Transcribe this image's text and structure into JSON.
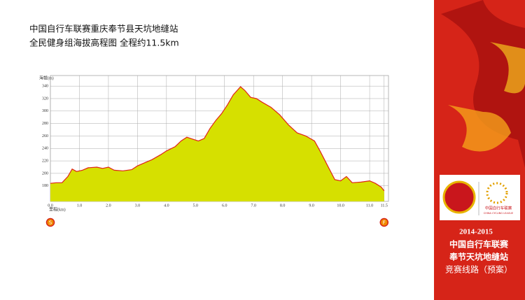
{
  "chart_data": {
    "type": "area",
    "title": "中国自行车联赛重庆奉节县天坑地缝站",
    "subtitle": "全民健身组海拔高程图  全程约11.5km",
    "y_label": "海拔(m)",
    "x_label": "里程(km)",
    "start_marker": "S",
    "finish_marker": "F",
    "x": [
      0,
      0.2,
      0.4,
      0.6,
      0.75,
      0.9,
      1.1,
      1.3,
      1.6,
      1.8,
      2.0,
      2.2,
      2.5,
      2.8,
      3.0,
      3.2,
      3.5,
      3.8,
      4.0,
      4.3,
      4.5,
      4.7,
      4.9,
      5.1,
      5.3,
      5.5,
      5.7,
      5.9,
      6.1,
      6.3,
      6.55,
      6.7,
      6.9,
      7.1,
      7.3,
      7.6,
      7.9,
      8.2,
      8.5,
      8.8,
      9.1,
      9.3,
      9.6,
      9.8,
      10.0,
      10.2,
      10.4,
      10.7,
      11.0,
      11.2,
      11.4,
      11.5
    ],
    "values": [
      184,
      185,
      185,
      195,
      207,
      203,
      205,
      209,
      210,
      208,
      210,
      205,
      204,
      206,
      212,
      216,
      222,
      230,
      236,
      243,
      252,
      258,
      255,
      252,
      256,
      272,
      285,
      296,
      310,
      326,
      339,
      333,
      322,
      320,
      314,
      306,
      294,
      278,
      265,
      260,
      252,
      235,
      208,
      190,
      188,
      195,
      185,
      186,
      188,
      184,
      178,
      172
    ],
    "fill_color": "#d6e000",
    "line_color": "#e02418",
    "xlim": [
      0,
      11.65
    ],
    "ylim": [
      155,
      357
    ],
    "xticks": [
      {
        "value": 0,
        "label": "0.0"
      },
      {
        "value": 1,
        "label": "1.0"
      },
      {
        "value": 2,
        "label": "2.0"
      },
      {
        "value": 3,
        "label": "3.0"
      },
      {
        "value": 4,
        "label": "4.0"
      },
      {
        "value": 5,
        "label": "5.0"
      },
      {
        "value": 6,
        "label": "6.0"
      },
      {
        "value": 7,
        "label": "7.0"
      },
      {
        "value": 8,
        "label": "8.0"
      },
      {
        "value": 9,
        "label": "9.0"
      },
      {
        "value": 10,
        "label": "10.0"
      },
      {
        "value": 11,
        "label": "11.0"
      },
      11.5
    ],
    "yticks": [
      180,
      200,
      220,
      240,
      260,
      280,
      300,
      320,
      340
    ],
    "grid": true
  },
  "sidebar": {
    "logo_text": "中国自行车联赛",
    "logo_subtext": "CHINA CYCLING LEAGUE",
    "season": "2014-2015",
    "line1": "中国自行车联赛",
    "line2": "奉节天坑地缝站",
    "line3": "竞赛线路（预案）"
  }
}
